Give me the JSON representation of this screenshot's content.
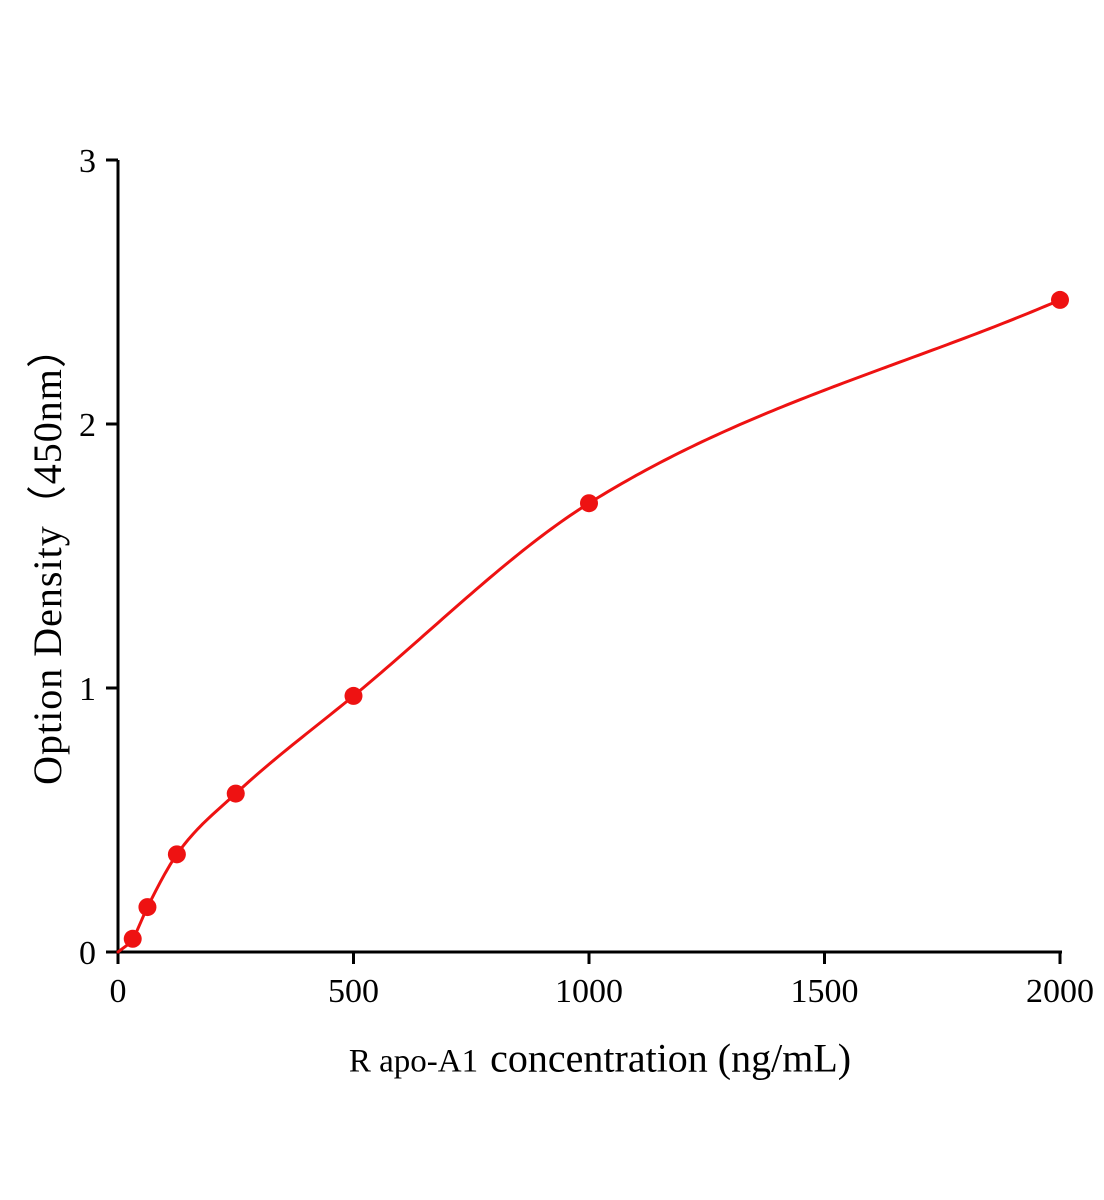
{
  "chart_data": {
    "type": "scatter",
    "title": "",
    "xlabel_prefix": "R apo-A1",
    "xlabel_main": "concentration (ng/mL)",
    "ylabel": "Option Density（450nm）",
    "x": [
      31.25,
      62.5,
      125,
      250,
      500,
      1000,
      2000
    ],
    "y": [
      0.05,
      0.17,
      0.37,
      0.6,
      0.97,
      1.7,
      2.47
    ],
    "xlim": [
      0,
      2000
    ],
    "ylim": [
      0,
      3
    ],
    "x_ticks": [
      "0",
      "500",
      "1000",
      "1500",
      "2000"
    ],
    "x_tick_values": [
      0,
      500,
      1000,
      1500,
      2000
    ],
    "y_ticks": [
      "0",
      "1",
      "2",
      "3"
    ],
    "y_tick_values": [
      0,
      1,
      2,
      3
    ],
    "curve_color": "#ee1212",
    "point_color": "#ee1212",
    "axis_color": "#000000",
    "grid": "off",
    "legend": "none"
  }
}
